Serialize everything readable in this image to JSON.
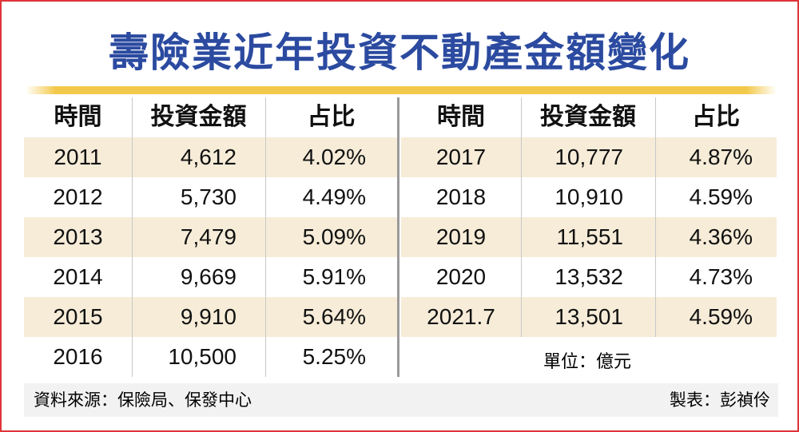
{
  "title": "壽險業近年投資不動產金額變化",
  "colors": {
    "title": "#2b4aa0",
    "frame": "#e0343a",
    "band": "#f6ecd8",
    "footer": "#f2f2f2",
    "gold": "#f3c94a"
  },
  "chart_data": {
    "type": "table",
    "title": "壽險業近年投資不動產金額變化",
    "columns": [
      "時間",
      "投資金額",
      "占比"
    ],
    "left_rows": [
      [
        "2011",
        "4,612",
        "4.02%"
      ],
      [
        "2012",
        "5,730",
        "4.49%"
      ],
      [
        "2013",
        "7,479",
        "5.09%"
      ],
      [
        "2014",
        "9,669",
        "5.91%"
      ],
      [
        "2015",
        "9,910",
        "5.64%"
      ],
      [
        "2016",
        "10,500",
        "5.25%"
      ]
    ],
    "right_rows": [
      [
        "2017",
        "10,777",
        "4.87%"
      ],
      [
        "2018",
        "10,910",
        "4.59%"
      ],
      [
        "2019",
        "11,551",
        "4.36%"
      ],
      [
        "2020",
        "13,532",
        "4.73%"
      ],
      [
        "2021.7",
        "13,501",
        "4.59%"
      ]
    ],
    "unit": "單位：億元"
  },
  "footer": {
    "source": "資料來源：保險局、保發中心",
    "credit": "製表：彭禎伶"
  }
}
